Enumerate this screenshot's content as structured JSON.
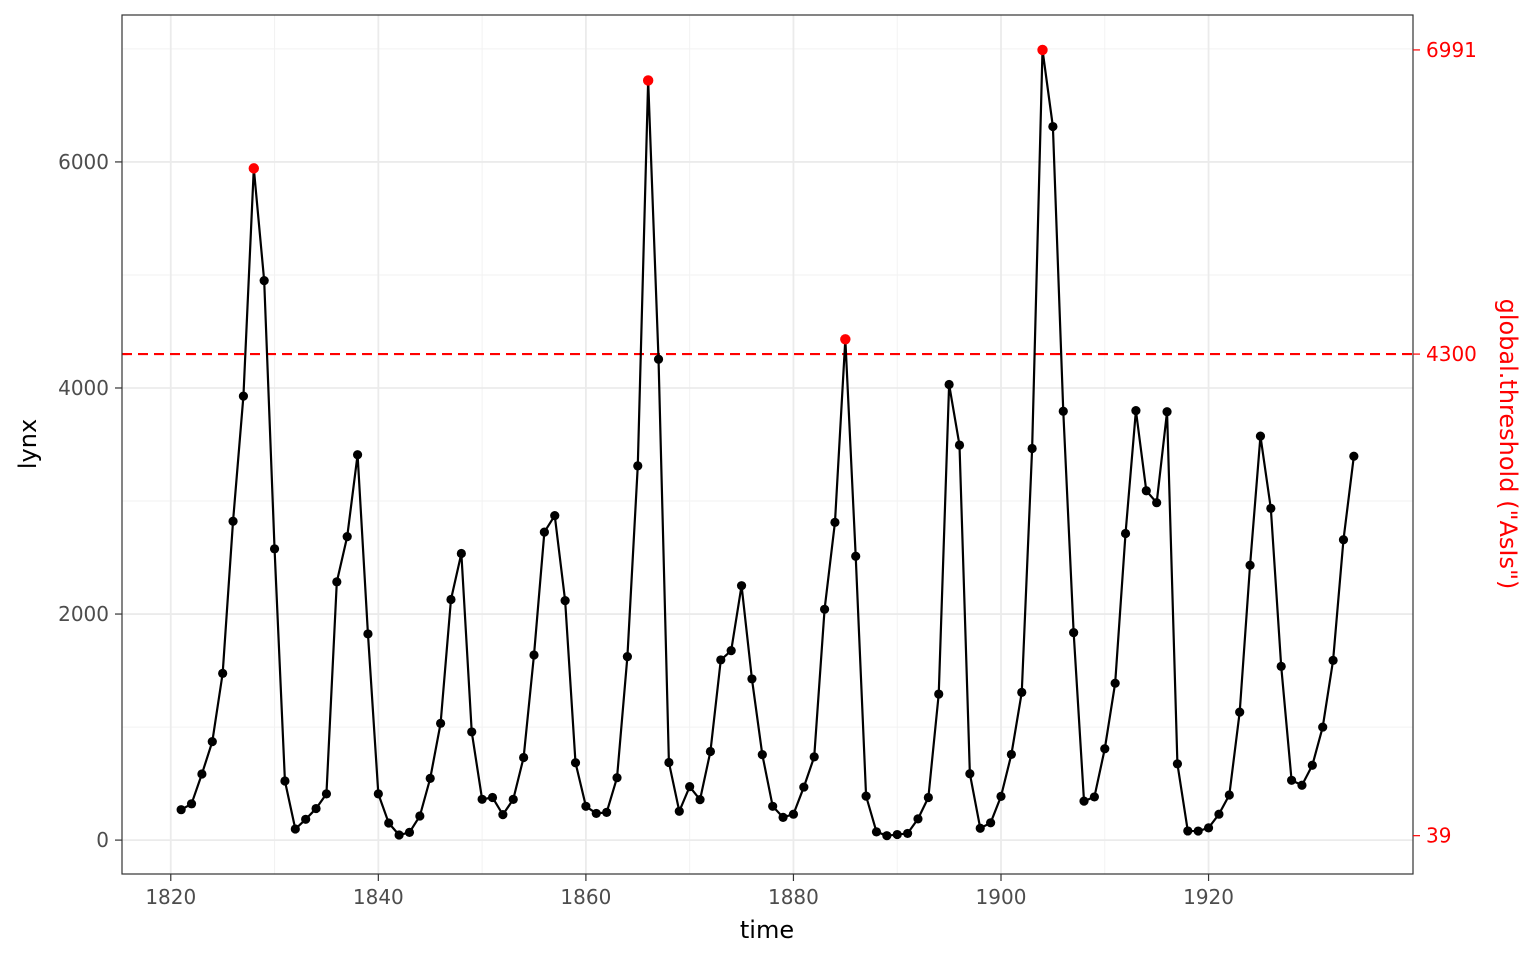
{
  "chart_data": {
    "type": "line",
    "xlabel": "time",
    "ylabel": "lynx",
    "xlim": [
      1815.3,
      1939.7
    ],
    "ylim": [
      -300,
      7300
    ],
    "x_ticks": [
      {
        "value": 1820,
        "label": "1820"
      },
      {
        "value": 1840,
        "label": "1840"
      },
      {
        "value": 1860,
        "label": "1860"
      },
      {
        "value": 1880,
        "label": "1880"
      },
      {
        "value": 1900,
        "label": "1900"
      },
      {
        "value": 1920,
        "label": "1920"
      }
    ],
    "y_ticks": [
      {
        "value": 0,
        "label": "0"
      },
      {
        "value": 2000,
        "label": "2000"
      },
      {
        "value": 4000,
        "label": "4000"
      },
      {
        "value": 6000,
        "label": "6000"
      }
    ],
    "secondary_axis": {
      "title": "global.threshold (\"AsIs\")",
      "ticks": [
        {
          "value": 39,
          "label": "39"
        },
        {
          "value": 4300,
          "label": "4300"
        },
        {
          "value": 6991,
          "label": "6991"
        }
      ],
      "color": "#ff0000"
    },
    "threshold": {
      "value": 4300,
      "style": "dashed",
      "color": "#ff0000"
    },
    "grid": true,
    "series": [
      {
        "x_start": 1821,
        "values": [
          269,
          321,
          585,
          871,
          1475,
          2821,
          3928,
          5943,
          4950,
          2577,
          523,
          98,
          184,
          279,
          409,
          2285,
          2685,
          3409,
          1824,
          409,
          151,
          45,
          68,
          213,
          546,
          1033,
          2129,
          2536,
          957,
          361,
          377,
          225,
          360,
          731,
          1638,
          2725,
          2871,
          2119,
          684,
          299,
          236,
          245,
          552,
          1623,
          3311,
          6721,
          4254,
          687,
          255,
          473,
          358,
          784,
          1594,
          1676,
          2251,
          1426,
          756,
          299,
          201,
          229,
          469,
          736,
          2042,
          2811,
          4431,
          2511,
          389,
          73,
          39,
          49,
          59,
          188,
          377,
          1292,
          4031,
          3495,
          587,
          105,
          153,
          387,
          758,
          1307,
          3465,
          6991,
          6313,
          3794,
          1836,
          345,
          382,
          808,
          1388,
          2713,
          3800,
          3091,
          2985,
          3790,
          674,
          81,
          80,
          108,
          229,
          399,
          1132,
          2432,
          3574,
          2935,
          1537,
          529,
          485,
          662,
          1000,
          1590,
          2657,
          3396
        ],
        "color": "#000000"
      }
    ],
    "highlighted_points": [
      {
        "x": 1828,
        "y": 5943
      },
      {
        "x": 1866,
        "y": 6721
      },
      {
        "x": 1885,
        "y": 4431
      },
      {
        "x": 1904,
        "y": 6991
      }
    ],
    "highlight_color": "#ff0000"
  }
}
